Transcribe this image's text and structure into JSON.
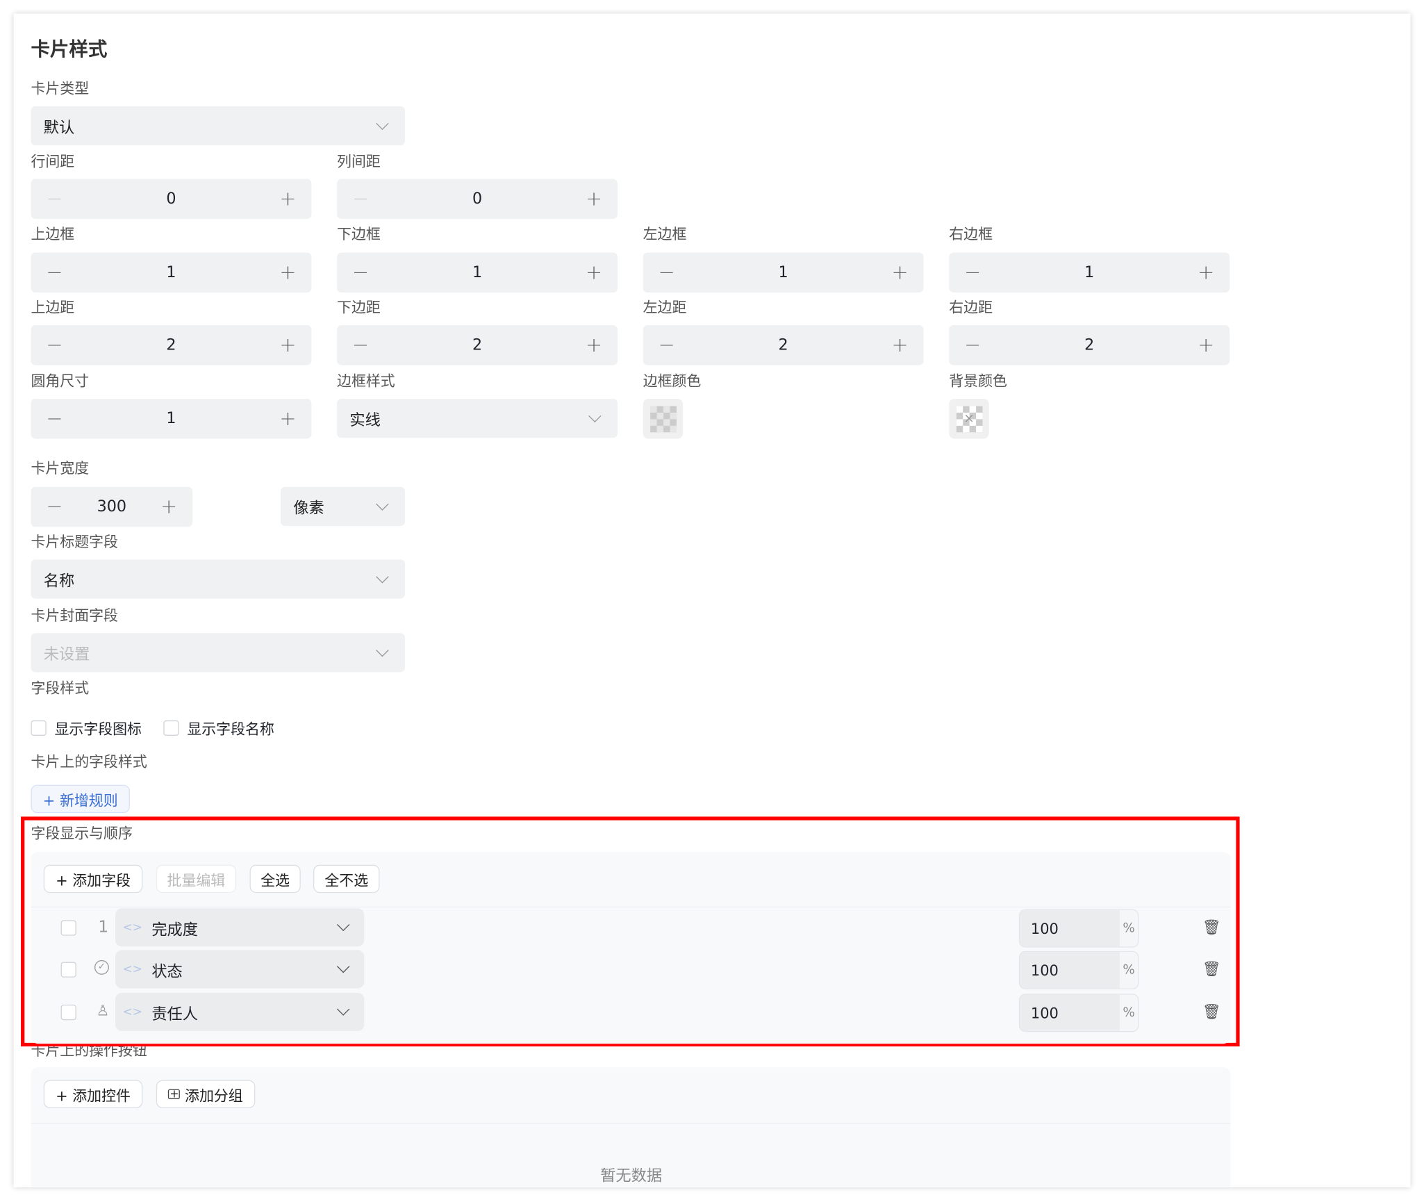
{
  "title": "卡片样式",
  "card_type": {
    "label": "卡片类型",
    "value": "默认"
  },
  "row_gap": {
    "label": "行间距",
    "value": "0"
  },
  "col_gap": {
    "label": "列间距",
    "value": "0"
  },
  "borders": [
    {
      "label": "上边框",
      "value": "1"
    },
    {
      "label": "下边框",
      "value": "1"
    },
    {
      "label": "左边框",
      "value": "1"
    },
    {
      "label": "右边框",
      "value": "1"
    }
  ],
  "paddings": [
    {
      "label": "上边距",
      "value": "2"
    },
    {
      "label": "下边距",
      "value": "2"
    },
    {
      "label": "左边距",
      "value": "2"
    },
    {
      "label": "右边距",
      "value": "2"
    }
  ],
  "radius": {
    "label": "圆角尺寸",
    "value": "1"
  },
  "border_style": {
    "label": "边框样式",
    "value": "实线"
  },
  "border_color": {
    "label": "边框颜色"
  },
  "bg_color": {
    "label": "背景颜色"
  },
  "card_width": {
    "label": "卡片宽度",
    "value": "300",
    "unit": "像素"
  },
  "title_field": {
    "label": "卡片标题字段",
    "value": "名称"
  },
  "cover_field": {
    "label": "卡片封面字段",
    "placeholder": "未设置"
  },
  "field_style": {
    "label": "字段样式",
    "show_icon": "显示字段图标",
    "show_name": "显示字段名称"
  },
  "card_field_style": {
    "label": "卡片上的字段样式",
    "add_rule": "+ 新增规则"
  },
  "fields_section": {
    "label": "字段显示与顺序",
    "add_field": "+ 添加字段",
    "batch_edit": "批量编辑",
    "select_all": "全选",
    "select_none": "全不选",
    "rows": [
      {
        "index": "1",
        "icon": "number-icon",
        "name": "完成度",
        "width": "100",
        "unit": "%"
      },
      {
        "icon": "check-circle-icon",
        "name": "状态",
        "width": "100",
        "unit": "%"
      },
      {
        "icon": "person-icon",
        "name": "责任人",
        "width": "100",
        "unit": "%"
      }
    ]
  },
  "actions_section": {
    "label": "卡片上的操作按钮",
    "add_control": "+ 添加控件",
    "add_group": "添加分组",
    "empty": "暂无数据"
  },
  "colors": {
    "highlight": "#ff0000",
    "link": "#3b6fd4"
  }
}
